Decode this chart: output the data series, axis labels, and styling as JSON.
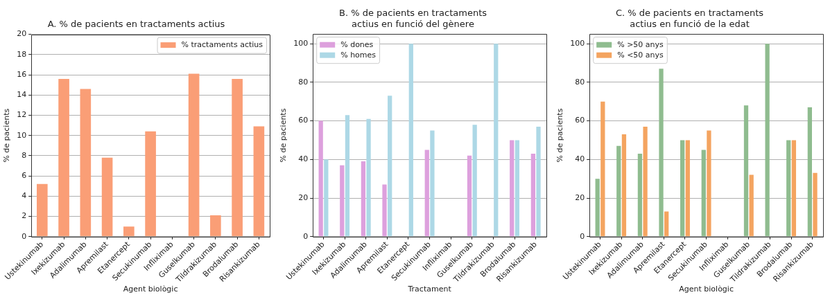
{
  "chart_data": [
    {
      "type": "bar",
      "title": "A. % de pacients en tractaments actius",
      "xlabel": "Agent biològic",
      "ylabel": "% de pacients",
      "categories": [
        "Ustekinumab",
        "Ixekizumab",
        "Adalimumab",
        "Apremilast",
        "Etanercept",
        "Secukinumab",
        "Infliximab",
        "Guselkumab",
        "Tildrakizumab",
        "Brodalumab",
        "Risankizumab"
      ],
      "series": [
        {
          "name": "% tractaments actius",
          "color": "#fa9e76",
          "values": [
            5.2,
            15.6,
            14.6,
            7.8,
            1.0,
            10.4,
            0,
            16.1,
            2.1,
            15.6,
            10.9
          ]
        }
      ],
      "ylim": [
        0,
        20
      ],
      "yticks": [
        0,
        2,
        4,
        6,
        8,
        10,
        12,
        14,
        16,
        18,
        20
      ],
      "grid": "y",
      "legend": "top right"
    },
    {
      "type": "bar",
      "title": "B. % de pacients en tractaments actius en funció del gènere",
      "xlabel": "Tractament",
      "ylabel": "% de pacients",
      "categories": [
        "Ustekinumab",
        "Ixekizumab",
        "Adalimumab",
        "Apremilast",
        "Etanercept",
        "Secukinumab",
        "Infliximab",
        "Guselkumab",
        "Tildrakizumab",
        "Brodalumab",
        "Risankizumab"
      ],
      "series": [
        {
          "name": "% dones",
          "color": "#dda0dd",
          "values": [
            60,
            37,
            39,
            27,
            0,
            45,
            0,
            42,
            0,
            50,
            43
          ]
        },
        {
          "name": "% homes",
          "color": "#add8e6",
          "values": [
            40,
            63,
            61,
            73,
            100,
            55,
            0,
            58,
            100,
            50,
            57
          ]
        }
      ],
      "ylim": [
        0,
        105
      ],
      "yticks": [
        0,
        20,
        40,
        60,
        80,
        100
      ],
      "grid": "y",
      "legend": "top left"
    },
    {
      "type": "bar",
      "title": "C. % de pacients en tractaments actius en funció de la edat",
      "xlabel": "Agent biològic",
      "ylabel": "% de pacients",
      "categories": [
        "Ustekinumab",
        "Ixekizumab",
        "Adalimumab",
        "Apremilast",
        "Etanercept",
        "Secukinumab",
        "Infliximab",
        "Guselkumab",
        "Tildrakizumab",
        "Brodalumab",
        "Risankizumab"
      ],
      "series": [
        {
          "name": "% >50 anys",
          "color": "#8fbc8f",
          "values": [
            30,
            47,
            43,
            87,
            50,
            45,
            0,
            68,
            100,
            50,
            67
          ]
        },
        {
          "name": "% <50 anys",
          "color": "#f4a460",
          "values": [
            70,
            53,
            57,
            13,
            50,
            55,
            0,
            32,
            0,
            50,
            33
          ]
        }
      ],
      "ylim": [
        0,
        105
      ],
      "yticks": [
        0,
        20,
        40,
        60,
        80,
        100
      ],
      "grid": "y",
      "legend": "top left"
    }
  ]
}
